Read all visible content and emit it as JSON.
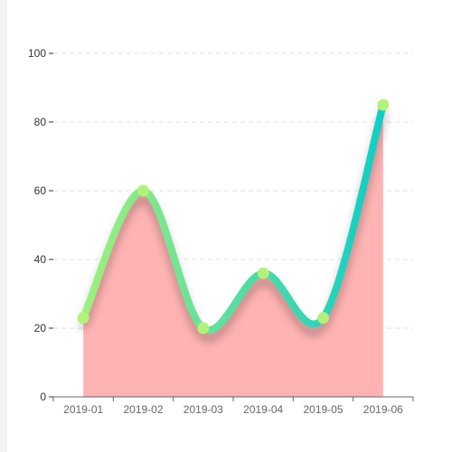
{
  "chart_data": {
    "type": "area",
    "title": "",
    "xlabel": "",
    "ylabel": "",
    "categories": [
      "2019-01",
      "2019-02",
      "2019-03",
      "2019-04",
      "2019-05",
      "2019-06"
    ],
    "series": [
      {
        "values": [
          23,
          60,
          20,
          36,
          23,
          85
        ]
      }
    ],
    "y_ticks": [
      "0",
      "20",
      "40",
      "60",
      "80",
      "100"
    ],
    "ylim": [
      0,
      100
    ],
    "grid": true,
    "legend": "none",
    "colors": {
      "area_fill": "#ffb3b3",
      "line_gradient_start": "#9ef07a",
      "line_gradient_end": "#0fcdc6",
      "point": "#b3f27a",
      "grid": "#e0e0e0",
      "axis": "#333333"
    }
  }
}
